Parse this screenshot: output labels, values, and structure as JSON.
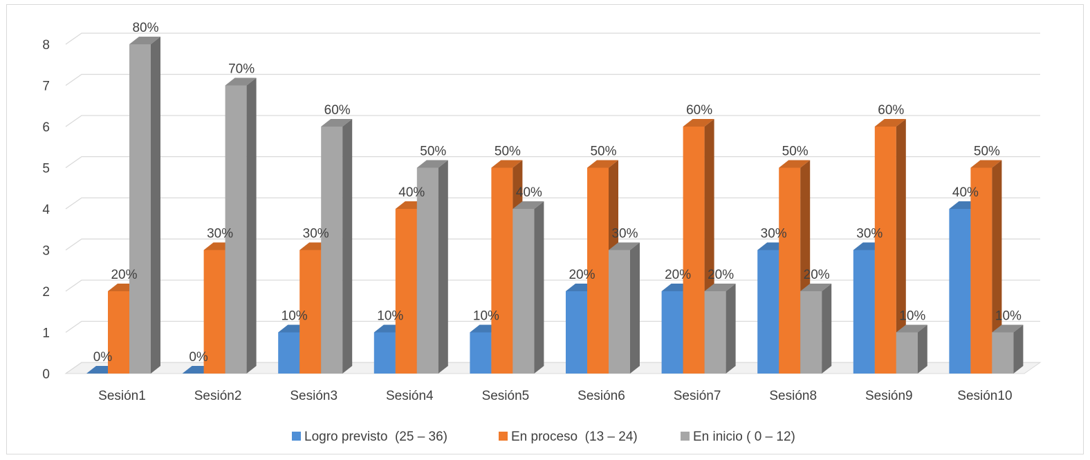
{
  "chart_data": {
    "type": "bar",
    "title": "",
    "xlabel": "",
    "ylabel": "",
    "categories": [
      "Sesión1",
      "Sesión2",
      "Sesión3",
      "Sesión4",
      "Sesión5",
      "Sesión6",
      "Sesión7",
      "Sesión8",
      "Sesión9",
      "Sesión10"
    ],
    "ylim": [
      0,
      8
    ],
    "yticks": [
      "0",
      "1",
      "2",
      "3",
      "4",
      "5",
      "6",
      "7",
      "8"
    ],
    "grid": true,
    "legend_position": "bottom",
    "series": [
      {
        "name": "Logro previsto  (25 – 36)",
        "color": "#4f8fd6",
        "values": [
          0,
          0,
          1,
          1,
          1,
          2,
          2,
          3,
          3,
          4
        ],
        "labels": [
          "0%",
          "0%",
          "10%",
          "10%",
          "10%",
          "20%",
          "20%",
          "30%",
          "30%",
          "40%"
        ]
      },
      {
        "name": "En proceso  (13 – 24)",
        "color": "#f07a2c",
        "values": [
          2,
          3,
          3,
          4,
          5,
          5,
          6,
          5,
          6,
          5
        ],
        "labels": [
          "20%",
          "30%",
          "30%",
          "40%",
          "50%",
          "50%",
          "60%",
          "50%",
          "60%",
          "50%"
        ]
      },
      {
        "name": "En inicio ( 0 – 12)",
        "color": "#a6a6a6",
        "values": [
          8,
          7,
          6,
          5,
          4,
          3,
          2,
          2,
          1,
          1
        ],
        "labels": [
          "80%",
          "70%",
          "60%",
          "50%",
          "40%",
          "30%",
          "20%",
          "20%",
          "10%",
          "10%"
        ]
      }
    ]
  }
}
